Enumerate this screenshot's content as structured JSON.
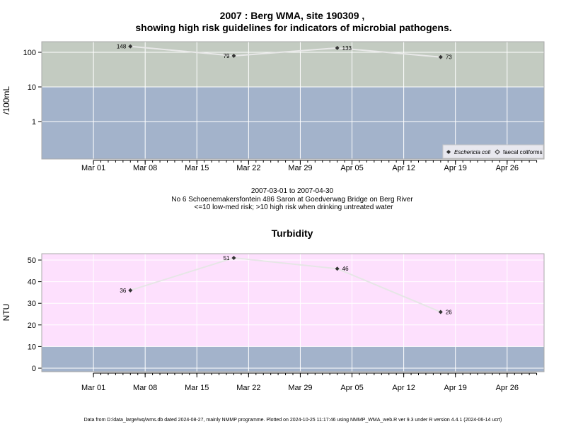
{
  "page": {
    "subtitle_lines": [
      "2007-03-01 to 2007-04-30",
      "No 6 Schoenemakersfontein 486 Saron at Goedverwag Bridge on Berg River",
      "<=10 low-med risk; >10 high risk when drinking untreated water"
    ],
    "footer": "Data from D:/data_large/wq/wms.db dated 2024-08-27, mainly NMMP programme. Plotted on 2024-10-25 11:17:46 using NMMP_WMA_web.R ver 9.3 under R version 4.4.1 (2024-06-14 ucrt)"
  },
  "chart_data": [
    {
      "type": "scatter",
      "title_lines": [
        "2007 : Berg WMA, site 190309 ,",
        "showing high risk guidelines for indicators of microbial pathogens."
      ],
      "xlabel": "",
      "ylabel": "/100mL",
      "yscale": "log",
      "y_ticks": [
        1,
        10,
        100
      ],
      "y_tick_labels": [
        "1",
        "10",
        "100"
      ],
      "x_ticks": [
        "2007-03-01",
        "2007-03-08",
        "2007-03-15",
        "2007-03-22",
        "2007-03-29",
        "2007-04-05",
        "2007-04-12",
        "2007-04-19",
        "2007-04-26"
      ],
      "x_tick_labels": [
        "Mar 01",
        "Mar 08",
        "Mar 15",
        "Mar 22",
        "Mar 29",
        "Apr 05",
        "Apr 12",
        "Apr 19",
        "Apr 26"
      ],
      "risk_threshold": 10,
      "colors": {
        "high_band": "#c3cbc1",
        "low_band": "#a3b3cb",
        "line": "#e8e8e8",
        "point": "#333333"
      },
      "series": [
        {
          "name": "Eschericia coli",
          "points": [
            {
              "x": "2007-03-06",
              "y": 148,
              "label": "148"
            },
            {
              "x": "2007-03-20",
              "y": 79,
              "label": "79"
            },
            {
              "x": "2007-04-03",
              "y": 133,
              "label": "133"
            },
            {
              "x": "2007-04-17",
              "y": 73,
              "label": "73"
            }
          ]
        },
        {
          "name": "faecal coliforms",
          "points": []
        }
      ],
      "legend_position": "bottom-right"
    },
    {
      "type": "scatter",
      "title": "Turbidity",
      "xlabel": "",
      "ylabel": "NTU",
      "y_ticks": [
        0,
        10,
        20,
        30,
        40,
        50
      ],
      "y_tick_labels": [
        "0",
        "10",
        "20",
        "30",
        "40",
        "50"
      ],
      "x_ticks": [
        "2007-03-01",
        "2007-03-08",
        "2007-03-15",
        "2007-03-22",
        "2007-03-29",
        "2007-04-05",
        "2007-04-12",
        "2007-04-19",
        "2007-04-26"
      ],
      "x_tick_labels": [
        "Mar 01",
        "Mar 08",
        "Mar 15",
        "Mar 22",
        "Mar 29",
        "Apr 05",
        "Apr 12",
        "Apr 19",
        "Apr 26"
      ],
      "risk_threshold": 10,
      "colors": {
        "high_band": "#fde0fd",
        "low_band": "#a3b3cb",
        "line": "#e6e6e6",
        "point": "#333333"
      },
      "series": [
        {
          "name": "Turbidity",
          "points": [
            {
              "x": "2007-03-06",
              "y": 36,
              "label": "36"
            },
            {
              "x": "2007-03-20",
              "y": 51,
              "label": "51"
            },
            {
              "x": "2007-04-03",
              "y": 46,
              "label": "46"
            },
            {
              "x": "2007-04-17",
              "y": 26,
              "label": "26"
            }
          ]
        }
      ]
    }
  ]
}
